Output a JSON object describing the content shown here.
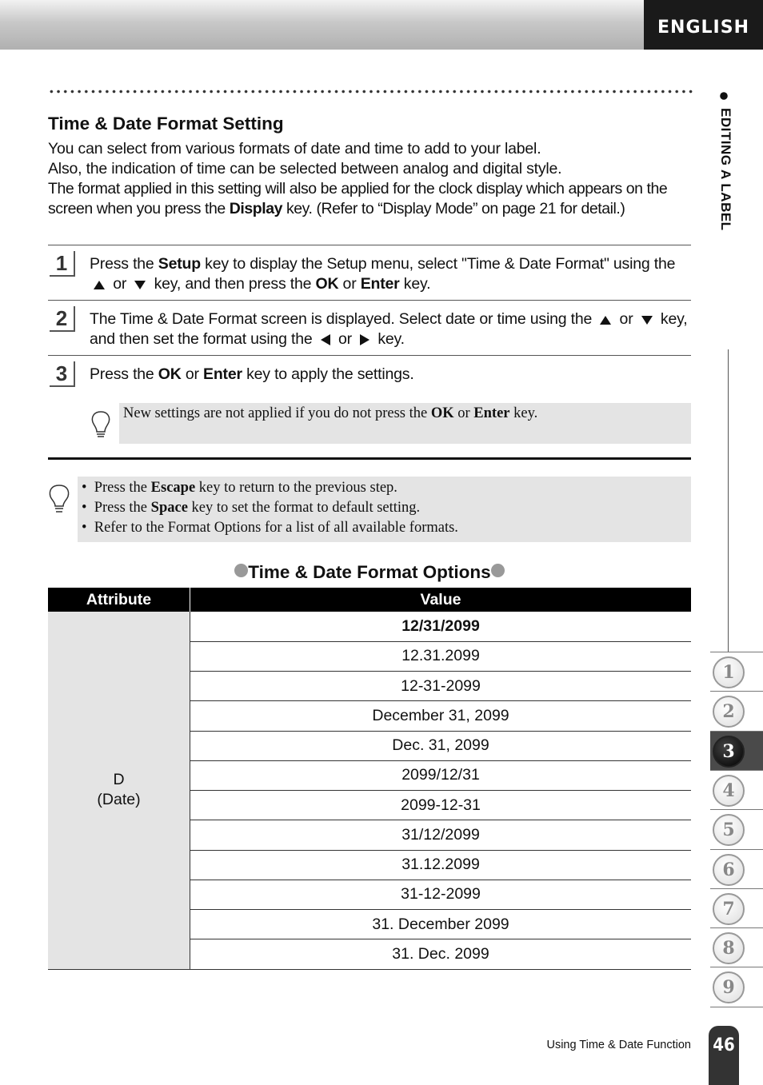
{
  "header": {
    "language": "ENGLISH"
  },
  "side_tab": "EDITING A LABEL",
  "section": {
    "title": "Time & Date Format Setting",
    "intro": [
      [
        "You can select from various formats of date and time to add to your label."
      ],
      [
        "Also, the indication of time can be selected between analog and digital style."
      ],
      [
        "The format applied in this setting will also be applied for the clock display which appears on the screen when you press the ",
        "Display",
        " key. (Refer to “Display Mode” on page 21 for detail.)"
      ]
    ],
    "steps": [
      {
        "number": "1",
        "text": [
          "Press the ",
          "Setup",
          " key to display the Setup menu, select \"Time & Date Format\" using the ",
          " or ",
          " key, and then press the ",
          "OK",
          " or ",
          "Enter",
          " key."
        ]
      },
      {
        "number": "2",
        "text": [
          "The Time & Date Format screen is displayed. Select date or time using the ",
          " or ",
          " key, and then set the format using the ",
          " or ",
          " key."
        ]
      },
      {
        "number": "3",
        "text": [
          "Press the ",
          "OK",
          " or ",
          "Enter",
          " key to apply the settings."
        ],
        "note": [
          "New settings are not applied if you do not press the ",
          "OK",
          " or ",
          "Enter",
          " key."
        ]
      }
    ],
    "hints": [
      [
        "Press the ",
        "Escape",
        " key to return to the previous step."
      ],
      [
        "Press the ",
        "Space",
        " key to set the format to default setting."
      ],
      [
        "Refer to the Format Options for a list of all available formats."
      ]
    ]
  },
  "table": {
    "title": "Time & Date Format Options",
    "headers": [
      "Attribute",
      "Value"
    ],
    "attribute": [
      "D",
      "(Date)"
    ],
    "values": [
      "12/31/2099",
      "12.31.2099",
      "12-31-2099",
      "December 31, 2099",
      "Dec. 31, 2099",
      "2099/12/31",
      "2099-12-31",
      "31/12/2099",
      "31.12.2099",
      "31-12-2099",
      "31. December 2099",
      "31. Dec. 2099"
    ]
  },
  "chapters": [
    "1",
    "2",
    "3",
    "4",
    "5",
    "6",
    "7",
    "8",
    "9"
  ],
  "active_chapter": 2,
  "footer": {
    "text": "Using Time & Date Function",
    "page": "46"
  }
}
